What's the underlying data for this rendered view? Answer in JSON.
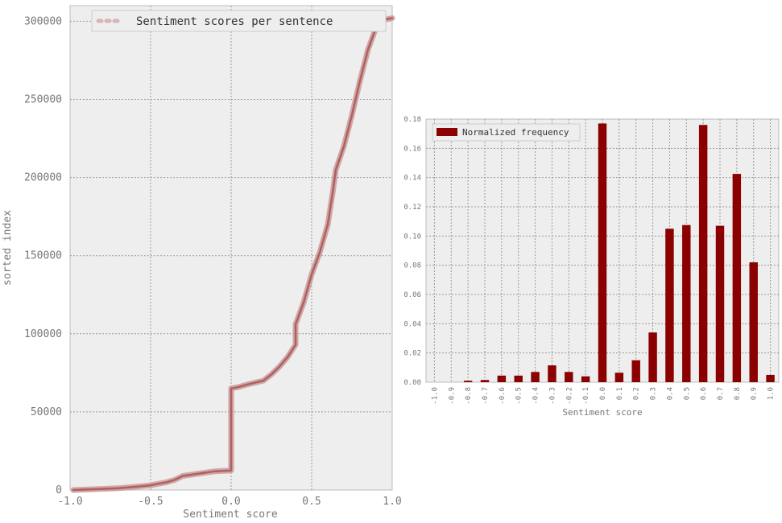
{
  "chart_data": [
    {
      "type": "line",
      "legend": {
        "entries": [
          "Sentiment scores per sentence"
        ],
        "position": "top-right"
      },
      "xlabel": "Sentiment score",
      "ylabel": "sorted index",
      "xlim": [
        -1.0,
        1.0
      ],
      "ylim": [
        0,
        310000
      ],
      "x_ticks": [
        "-1.0",
        "-0.5",
        "0.0",
        "0.5",
        "1.0"
      ],
      "y_ticks": [
        "0",
        "50000",
        "100000",
        "150000",
        "200000",
        "250000",
        "300000"
      ],
      "grid": true,
      "colors": {
        "line": "#b06060",
        "line_glow": "#c99a9a",
        "background": "#eeeeee"
      },
      "series": [
        {
          "name": "Sentiment scores per sentence",
          "x": [
            -0.98,
            -0.9,
            -0.8,
            -0.7,
            -0.6,
            -0.5,
            -0.45,
            -0.4,
            -0.35,
            -0.3,
            -0.2,
            -0.1,
            0.0,
            0.0,
            0.05,
            0.1,
            0.2,
            0.25,
            0.3,
            0.35,
            0.4,
            0.4,
            0.45,
            0.5,
            0.55,
            0.6,
            0.63,
            0.65,
            0.7,
            0.75,
            0.8,
            0.85,
            0.9,
            0.95,
            1.0
          ],
          "y": [
            0,
            300,
            700,
            1200,
            2000,
            3000,
            4000,
            5000,
            6500,
            9000,
            10500,
            12000,
            12500,
            65000,
            66000,
            67500,
            70000,
            74000,
            79000,
            85000,
            93000,
            106000,
            120000,
            138000,
            152000,
            170000,
            190000,
            205000,
            220000,
            240000,
            262000,
            282000,
            296000,
            301000,
            302000
          ]
        }
      ]
    },
    {
      "type": "bar",
      "legend": {
        "entries": [
          "Normalized frequency"
        ],
        "position": "top-left"
      },
      "xlabel": "Sentiment score",
      "ylabel": "",
      "ylim": [
        0,
        0.18
      ],
      "y_ticks": [
        "0.00",
        "0.02",
        "0.04",
        "0.06",
        "0.08",
        "0.10",
        "0.12",
        "0.14",
        "0.16",
        "0.18"
      ],
      "grid": true,
      "colors": {
        "bar": "#8b0000",
        "background": "#eeeeee"
      },
      "categories": [
        "-1.0",
        "-0.9",
        "-0.8",
        "-0.7",
        "-0.6",
        "-0.5",
        "-0.4",
        "-0.3",
        "-0.2",
        "-0.1",
        "0.0",
        "0.1",
        "0.2",
        "0.3",
        "0.4",
        "0.5",
        "0.6",
        "0.7",
        "0.8",
        "0.9",
        "1.0"
      ],
      "series": [
        {
          "name": "Normalized frequency",
          "values": [
            0.0,
            0.0,
            0.001,
            0.0015,
            0.0045,
            0.0045,
            0.007,
            0.0115,
            0.007,
            0.004,
            0.177,
            0.0065,
            0.015,
            0.034,
            0.105,
            0.1075,
            0.176,
            0.107,
            0.1425,
            0.082,
            0.005
          ]
        }
      ]
    }
  ]
}
